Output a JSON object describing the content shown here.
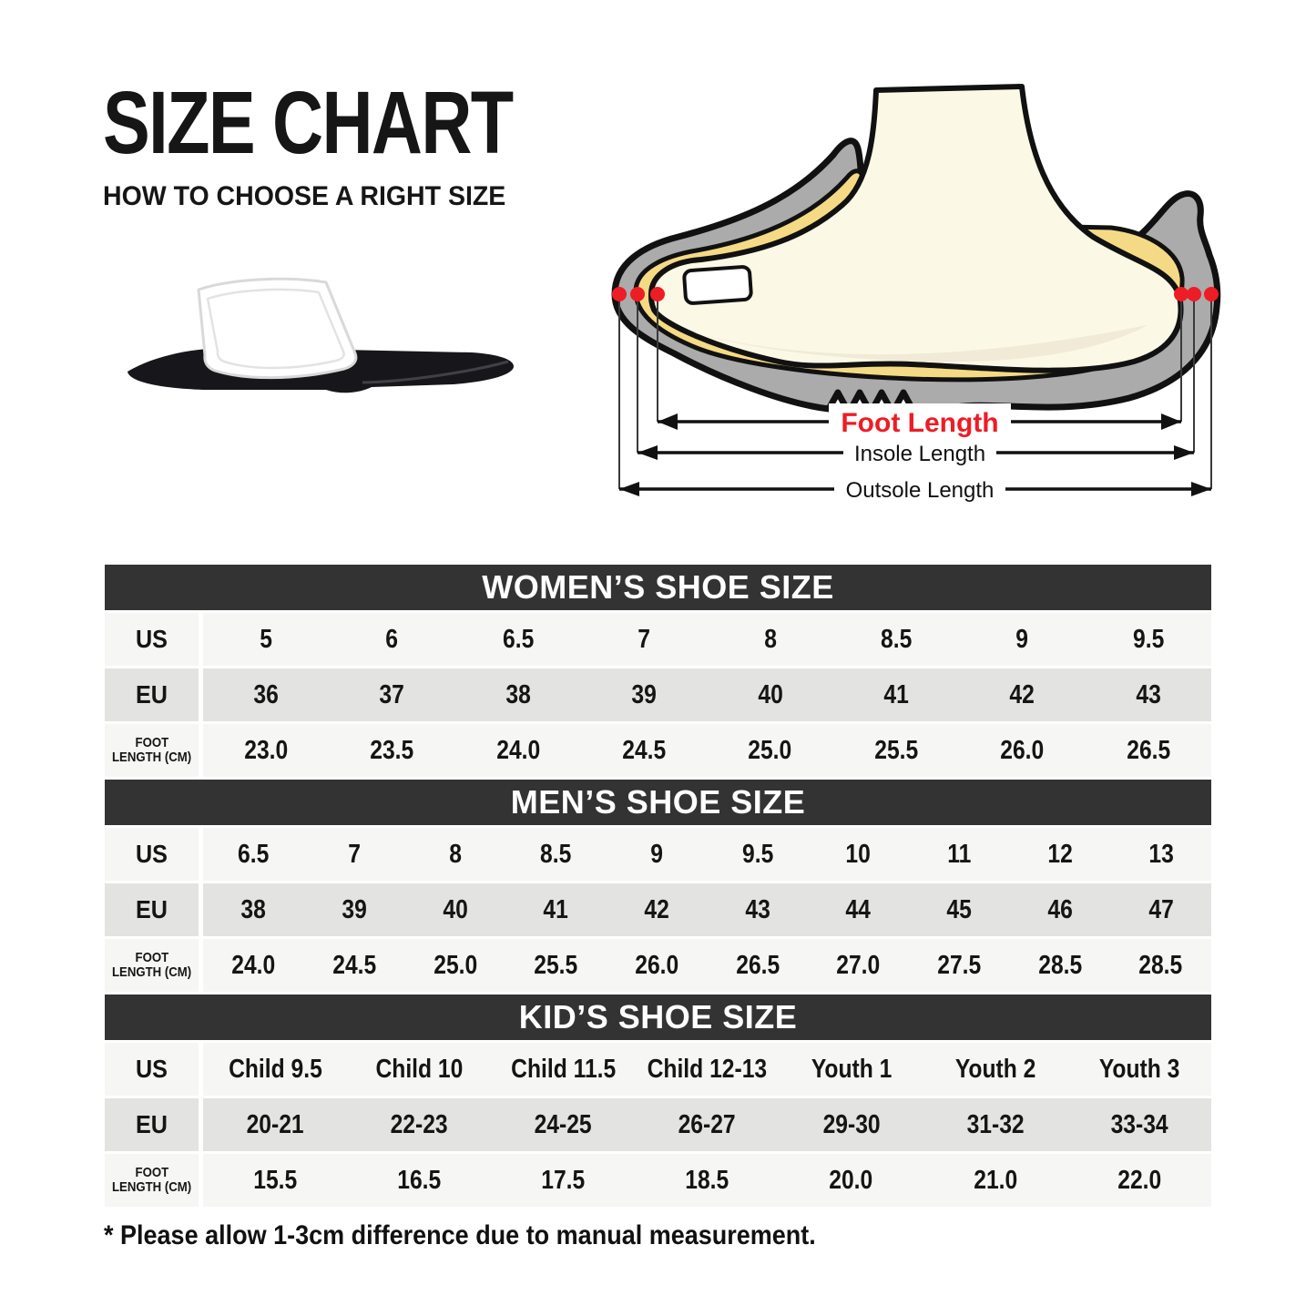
{
  "page": {
    "title": "SIZE CHART",
    "subtitle": "HOW TO CHOOSE A RIGHT SIZE",
    "footnote": "* Please allow 1-3cm difference due to manual measurement."
  },
  "diagram": {
    "foot_length_label": "Foot Length",
    "insole_length_label": "Insole Length",
    "outsole_length_label": "Outsole Length",
    "accent_red": "#ee1c25",
    "sole_gray": "#ababab",
    "insole_yellow": "#f5da85",
    "foot_cream": "#fcf8e6"
  },
  "tables": {
    "header_bg": "#333333",
    "row_light": "#f6f6f5",
    "row_gray": "#e3e3e2",
    "sections": [
      {
        "title": "WOMEN’S SHOE SIZE",
        "rows": [
          {
            "label": "US",
            "shade": "light",
            "values": [
              "5",
              "6",
              "6.5",
              "7",
              "8",
              "8.5",
              "9",
              "9.5"
            ]
          },
          {
            "label": "EU",
            "shade": "gray",
            "values": [
              "36",
              "37",
              "38",
              "39",
              "40",
              "41",
              "42",
              "43"
            ]
          },
          {
            "label_lines": [
              "FOOT",
              "LENGTH (CM)"
            ],
            "shade": "light",
            "values": [
              "23.0",
              "23.5",
              "24.0",
              "24.5",
              "25.0",
              "25.5",
              "26.0",
              "26.5"
            ]
          }
        ]
      },
      {
        "title": "MEN’S SHOE SIZE",
        "rows": [
          {
            "label": "US",
            "shade": "light",
            "values": [
              "6.5",
              "7",
              "8",
              "8.5",
              "9",
              "9.5",
              "10",
              "11",
              "12",
              "13"
            ]
          },
          {
            "label": "EU",
            "shade": "gray",
            "values": [
              "38",
              "39",
              "40",
              "41",
              "42",
              "43",
              "44",
              "45",
              "46",
              "47"
            ]
          },
          {
            "label_lines": [
              "FOOT",
              "LENGTH (CM)"
            ],
            "shade": "light",
            "values": [
              "24.0",
              "24.5",
              "25.0",
              "25.5",
              "26.0",
              "26.5",
              "27.0",
              "27.5",
              "28.5",
              "28.5"
            ]
          }
        ]
      },
      {
        "title": "KID’S SHOE SIZE",
        "rows": [
          {
            "label": "US",
            "shade": "light",
            "values": [
              "Child 9.5",
              "Child 10",
              "Child 11.5",
              "Child 12-13",
              "Youth 1",
              "Youth 2",
              "Youth 3"
            ]
          },
          {
            "label": "EU",
            "shade": "gray",
            "values": [
              "20-21",
              "22-23",
              "24-25",
              "26-27",
              "29-30",
              "31-32",
              "33-34"
            ]
          },
          {
            "label_lines": [
              "FOOT",
              "LENGTH (CM)"
            ],
            "shade": "light",
            "values": [
              "15.5",
              "16.5",
              "17.5",
              "18.5",
              "20.0",
              "21.0",
              "22.0"
            ]
          }
        ]
      }
    ]
  }
}
